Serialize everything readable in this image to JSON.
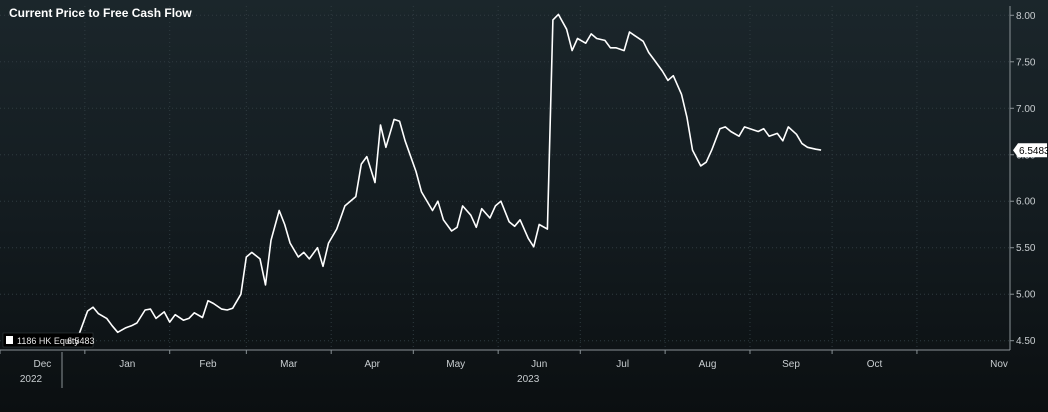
{
  "chart_data": {
    "type": "line",
    "title": "Current Price to Free Cash Flow",
    "xlabel": "",
    "ylabel": "",
    "y_axis_side": "right",
    "ylim": [
      4.4,
      8.1
    ],
    "y_ticks": [
      "4.50",
      "5.00",
      "5.50",
      "6.00",
      "6.50",
      "7.00",
      "7.50",
      "8.00"
    ],
    "x_ticks": [
      {
        "label": "Dec",
        "date": "2022-12-01"
      },
      {
        "label": "Jan",
        "date": "2023-01-01"
      },
      {
        "label": "Feb",
        "date": "2023-02-01"
      },
      {
        "label": "Mar",
        "date": "2023-03-01"
      },
      {
        "label": "Apr",
        "date": "2023-04-01"
      },
      {
        "label": "May",
        "date": "2023-05-01"
      },
      {
        "label": "Jun",
        "date": "2023-06-01"
      },
      {
        "label": "Jul",
        "date": "2023-07-01"
      },
      {
        "label": "Aug",
        "date": "2023-08-01"
      },
      {
        "label": "Sep",
        "date": "2023-09-01"
      },
      {
        "label": "Oct",
        "date": "2023-10-01"
      },
      {
        "label": "Nov",
        "date": "2023-11-01"
      }
    ],
    "years": [
      {
        "label": "2022",
        "date": "2022-12-01"
      },
      {
        "label": "2023",
        "date": "2023-06-01"
      }
    ],
    "xlim": [
      "2022-12-01",
      "2023-12-05"
    ],
    "grid": true,
    "legend_position": "bottom-left",
    "last_value_label": "6.5483",
    "series": [
      {
        "name": "1186 HK Equity",
        "last": "6.5483",
        "color": "#ffffff",
        "x": [
          "2022-12-30",
          "2023-01-02",
          "2023-01-04",
          "2023-01-06",
          "2023-01-09",
          "2023-01-11",
          "2023-01-13",
          "2023-01-16",
          "2023-01-18",
          "2023-01-20",
          "2023-01-23",
          "2023-01-25",
          "2023-01-27",
          "2023-01-30",
          "2023-02-01",
          "2023-02-03",
          "2023-02-06",
          "2023-02-08",
          "2023-02-10",
          "2023-02-13",
          "2023-02-15",
          "2023-02-17",
          "2023-02-20",
          "2023-02-22",
          "2023-02-24",
          "2023-02-27",
          "2023-03-01",
          "2023-03-03",
          "2023-03-06",
          "2023-03-08",
          "2023-03-10",
          "2023-03-13",
          "2023-03-15",
          "2023-03-17",
          "2023-03-20",
          "2023-03-22",
          "2023-03-24",
          "2023-03-27",
          "2023-03-29",
          "2023-03-31",
          "2023-04-03",
          "2023-04-06",
          "2023-04-10",
          "2023-04-12",
          "2023-04-14",
          "2023-04-17",
          "2023-04-19",
          "2023-04-21",
          "2023-04-24",
          "2023-04-26",
          "2023-04-28",
          "2023-05-02",
          "2023-05-04",
          "2023-05-08",
          "2023-05-10",
          "2023-05-12",
          "2023-05-15",
          "2023-05-17",
          "2023-05-19",
          "2023-05-22",
          "2023-05-24",
          "2023-05-26",
          "2023-05-29",
          "2023-05-31",
          "2023-06-02",
          "2023-06-05",
          "2023-06-07",
          "2023-06-09",
          "2023-06-12",
          "2023-06-14",
          "2023-06-16",
          "2023-06-19",
          "2023-06-21",
          "2023-06-23",
          "2023-06-26",
          "2023-06-28",
          "2023-06-30",
          "2023-07-03",
          "2023-07-05",
          "2023-07-07",
          "2023-07-10",
          "2023-07-12",
          "2023-07-14",
          "2023-07-17",
          "2023-07-19",
          "2023-07-21",
          "2023-07-24",
          "2023-07-26",
          "2023-07-28",
          "2023-07-31",
          "2023-08-02",
          "2023-08-04",
          "2023-08-07",
          "2023-08-09",
          "2023-08-11",
          "2023-08-14",
          "2023-08-16",
          "2023-08-18",
          "2023-08-21",
          "2023-08-23",
          "2023-08-25",
          "2023-08-28",
          "2023-08-30",
          "2023-09-01",
          "2023-09-04",
          "2023-09-06",
          "2023-09-08",
          "2023-09-11",
          "2023-09-13",
          "2023-09-15",
          "2023-09-18",
          "2023-09-20",
          "2023-09-22",
          "2023-09-25",
          "2023-09-27"
        ],
        "y": [
          4.58,
          4.82,
          4.86,
          4.79,
          4.74,
          4.66,
          4.59,
          4.64,
          4.66,
          4.69,
          4.83,
          4.84,
          4.74,
          4.81,
          4.7,
          4.78,
          4.72,
          4.74,
          4.8,
          4.75,
          4.93,
          4.9,
          4.84,
          4.83,
          4.85,
          5.0,
          5.4,
          5.45,
          5.38,
          5.1,
          5.58,
          5.9,
          5.75,
          5.55,
          5.4,
          5.45,
          5.38,
          5.5,
          5.3,
          5.55,
          5.7,
          5.95,
          6.05,
          6.4,
          6.48,
          6.2,
          6.82,
          6.58,
          6.88,
          6.86,
          6.65,
          6.32,
          6.1,
          5.9,
          6.0,
          5.8,
          5.68,
          5.72,
          5.95,
          5.85,
          5.72,
          5.92,
          5.82,
          5.95,
          6.0,
          5.78,
          5.73,
          5.8,
          5.6,
          5.51,
          5.75,
          5.7,
          7.95,
          8.01,
          7.85,
          7.62,
          7.75,
          7.7,
          7.8,
          7.75,
          7.73,
          7.65,
          7.65,
          7.62,
          7.82,
          7.78,
          7.72,
          7.6,
          7.52,
          7.4,
          7.3,
          7.35,
          7.15,
          6.9,
          6.55,
          6.38,
          6.42,
          6.55,
          6.78,
          6.8,
          6.75,
          6.7,
          6.8,
          6.78,
          6.75,
          6.78,
          6.7,
          6.73,
          6.65,
          6.8,
          6.72,
          6.62,
          6.58,
          6.56,
          6.55
        ]
      }
    ]
  }
}
